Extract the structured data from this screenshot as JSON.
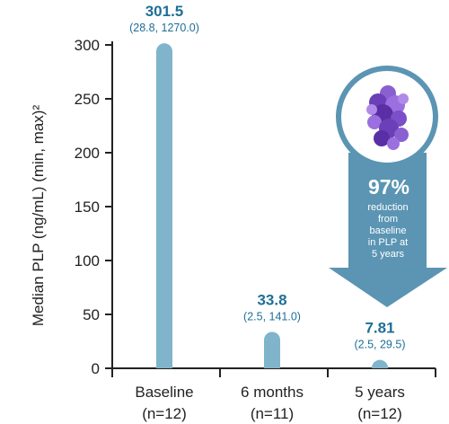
{
  "chart_data": {
    "type": "bar",
    "ylabel": "Median PLP (ng/mL) (min, max)²",
    "ylim": [
      0,
      300
    ],
    "yticks": [
      0,
      50,
      100,
      150,
      200,
      250,
      300
    ],
    "grid": false,
    "categories": [
      "Baseline",
      "6 months",
      "5 years"
    ],
    "category_n": [
      "(n=12)",
      "(n=11)",
      "(n=12)"
    ],
    "values": [
      301.5,
      33.8,
      7.81
    ],
    "value_labels": [
      "301.5",
      "33.8",
      "7.81"
    ],
    "ranges": [
      "(28.8, 1270.0)",
      "(2.5, 141.0)",
      "(2.5, 29.5)"
    ],
    "bar_color": "#7fb4cb",
    "label_color": "#1f6f96",
    "annotation": {
      "percent": "97%",
      "lines": [
        "reduction",
        "from",
        "baseline",
        "in PLP at",
        "5 years"
      ],
      "arrow_color": "#5b95b3",
      "icon": "protein-molecule-icon"
    }
  }
}
